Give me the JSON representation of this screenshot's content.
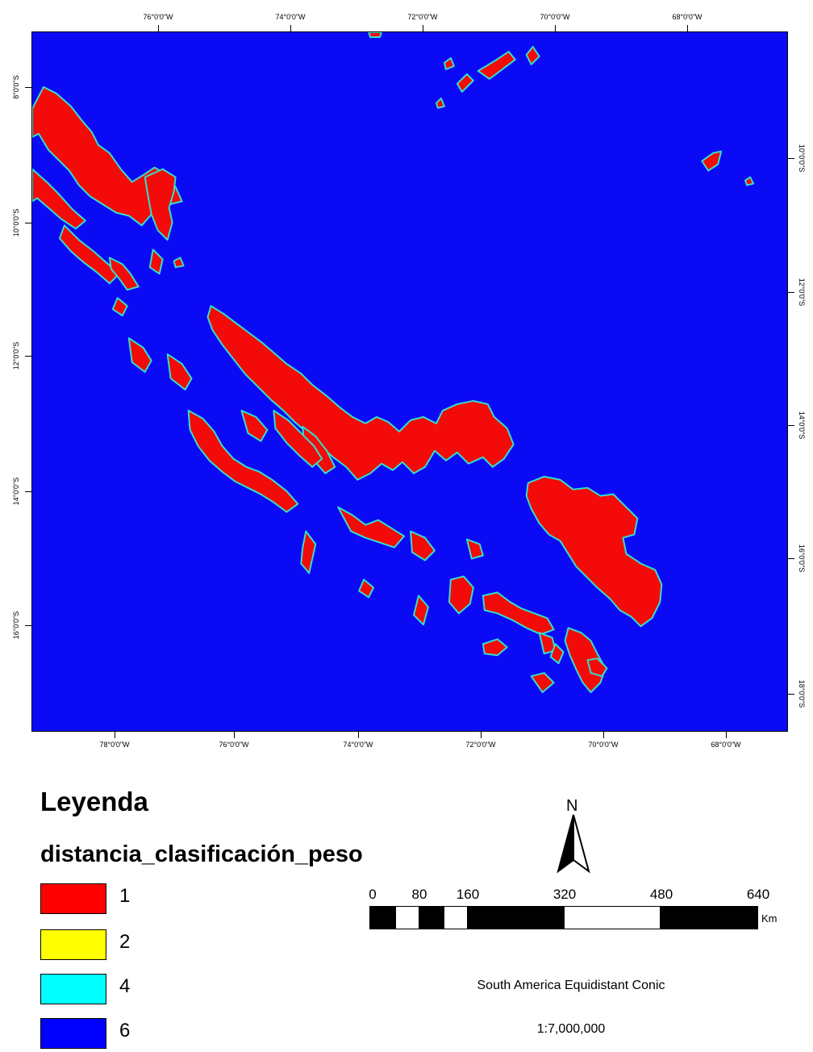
{
  "map": {
    "top_lon_labels": [
      "76°0'0\"W",
      "74°0'0\"W",
      "72°0'0\"W",
      "70°0'0\"W",
      "68°0'0\"W"
    ],
    "bottom_lon_labels": [
      "78°0'0\"W",
      "76°0'0\"W",
      "74°0'0\"W",
      "72°0'0\"W",
      "70°0'0\"W",
      "68°0'0\"W"
    ],
    "left_lat_labels": [
      "8°0'0\"S",
      "10°0'0\"S",
      "12°0'0\"S",
      "14°0'0\"S",
      "16°0'0\"S"
    ],
    "right_lat_labels": [
      "10°0'0\"S",
      "12°0'0\"S",
      "14°0'0\"S",
      "16°0'0\"S",
      "18°0'0\"S"
    ],
    "background_color": "#0a0af5",
    "patch_fill_color": "#f50a0a",
    "patch_edge_color": "#33e0c8"
  },
  "legend": {
    "title": "Leyenda",
    "field": "distancia_clasificación_peso",
    "items": [
      {
        "label": "1",
        "color": "#ff0000"
      },
      {
        "label": "2",
        "color": "#ffff00"
      },
      {
        "label": "4",
        "color": "#00ffff"
      },
      {
        "label": "6",
        "color": "#0000ff"
      }
    ]
  },
  "north_arrow": {
    "letter": "N",
    "icon": "north-arrow-icon"
  },
  "scale": {
    "labels": [
      "0",
      "80",
      "160",
      "320",
      "480",
      "640"
    ],
    "unit": "Km",
    "projection": "South America Equidistant Conic",
    "ratio": "1:7,000,000"
  }
}
